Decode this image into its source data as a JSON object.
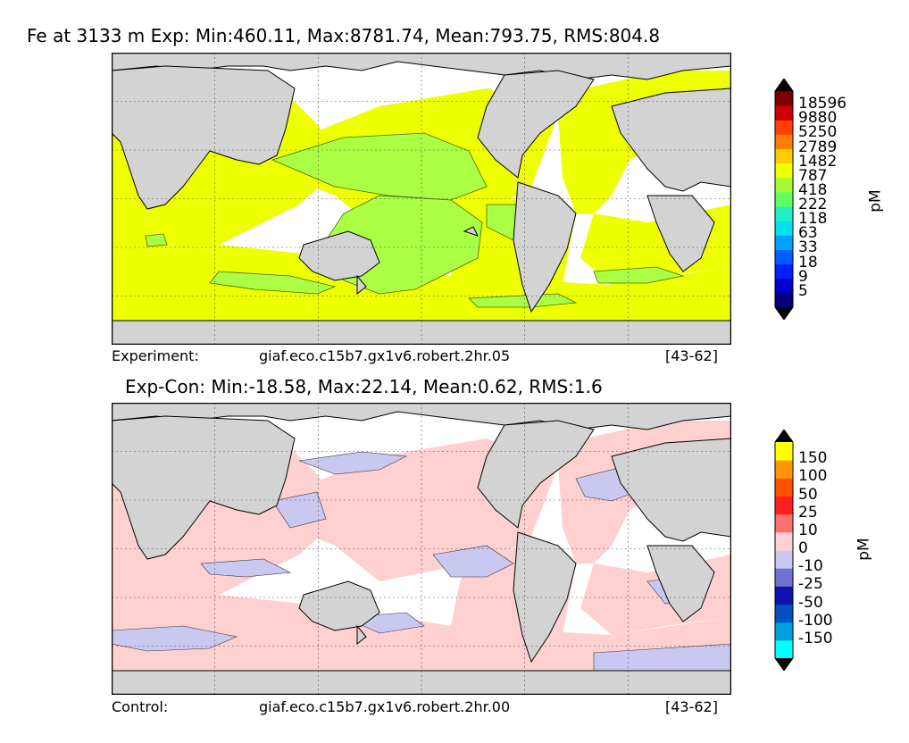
{
  "chart_data": [
    {
      "type": "heatmap",
      "title": "Fe at 3133 m Exp: Min:460.11, Max:8781.74, Mean:793.75, RMS:804.8",
      "caption_left": "Experiment:",
      "caption_center": "giaf.eco.c15b7.gx1v6.robert.2hr.05",
      "caption_right": "[43-62]",
      "colorbar": {
        "unit": "pM",
        "levels": [
          "18596",
          "9880",
          "5250",
          "2789",
          "1482",
          "787",
          "418",
          "222",
          "118",
          "63",
          "33",
          "18",
          "9",
          "5"
        ],
        "colors": [
          "#000080",
          "#0000cc",
          "#0020ff",
          "#0060ff",
          "#00a0ff",
          "#00e0f0",
          "#20f0c0",
          "#60ff60",
          "#a8f838",
          "#eeff00",
          "#ffcc00",
          "#ff8000",
          "#ff4000",
          "#d00000",
          "#800000"
        ],
        "over_color": "#000000",
        "under_color": "#000000"
      }
    },
    {
      "type": "heatmap",
      "title": "Exp-Con: Min:-18.58, Max:22.14, Mean:0.62, RMS:1.6",
      "caption_left": "Control:",
      "caption_center": "giaf.eco.c15b7.gx1v6.robert.2hr.00",
      "caption_right": "[43-62]",
      "colorbar": {
        "unit": "pM",
        "levels": [
          "150",
          "100",
          "50",
          "25",
          "10",
          "0",
          "-10",
          "-25",
          "-50",
          "-100",
          "-150"
        ],
        "colors": [
          "#00ffff",
          "#00a0e0",
          "#0050c0",
          "#1010b0",
          "#7070d0",
          "#c8c8f0",
          "#ffd0d0",
          "#ff7070",
          "#ff2020",
          "#ff5000",
          "#ff9800",
          "#ffff00"
        ],
        "over_color": "#000000",
        "under_color": "#000000"
      }
    }
  ]
}
